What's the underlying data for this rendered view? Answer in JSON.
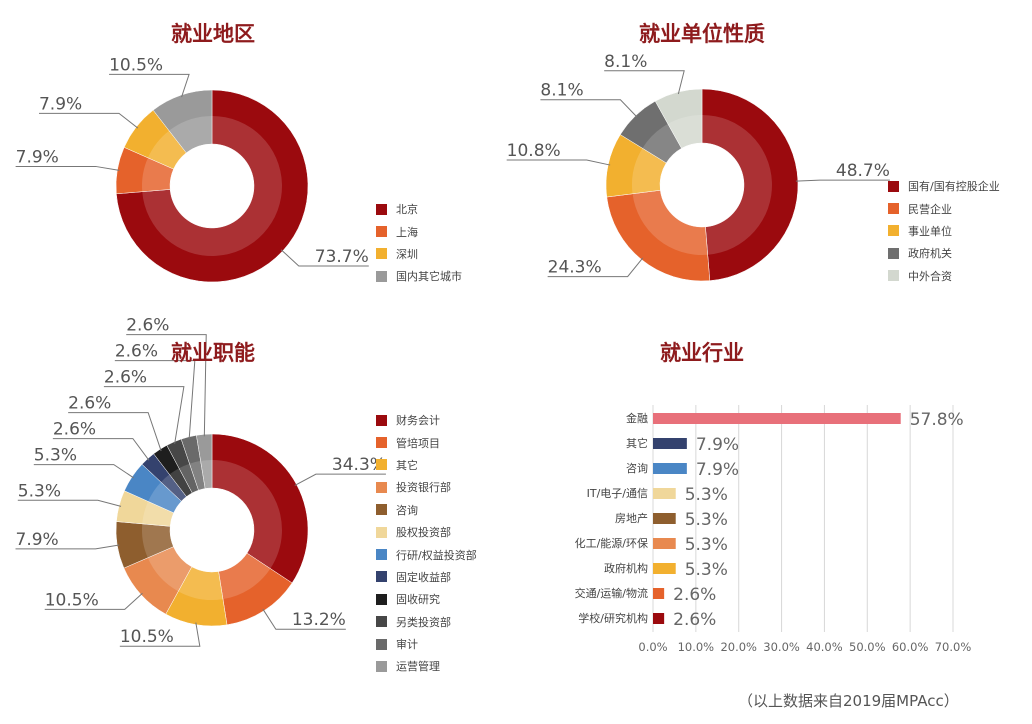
{
  "chart_data": [
    {
      "type": "pie",
      "title": "就业地区",
      "legend_position": "right",
      "categories": [
        "北京",
        "上海",
        "深圳",
        "国内其它城市"
      ],
      "values": [
        73.7,
        7.9,
        7.9,
        10.5
      ],
      "labels": [
        "73.7%",
        "7.9%",
        "7.9%",
        "10.5%"
      ],
      "colors": [
        "#9b0a0e",
        "#e5622b",
        "#f2b02f",
        "#9a9a9a"
      ]
    },
    {
      "type": "pie",
      "title": "就业单位性质",
      "legend_position": "right",
      "categories": [
        "国有/国有控股企业",
        "民营企业",
        "事业单位",
        "政府机关",
        "中外合资"
      ],
      "values": [
        48.7,
        24.3,
        10.8,
        8.1,
        8.1
      ],
      "labels": [
        "48.7%",
        "24.3%",
        "10.8%",
        "8.1%",
        "8.1%"
      ],
      "colors": [
        "#9b0a0e",
        "#e5622b",
        "#f2b02f",
        "#6f6f6f",
        "#d3d8cf"
      ]
    },
    {
      "type": "pie",
      "title": "就业职能",
      "legend_position": "right",
      "categories": [
        "财务会计",
        "管培项目",
        "其它",
        "投资银行部",
        "咨询",
        "股权投资部",
        "行研/权益投资部",
        "固定收益部",
        "固收研究",
        "另类投资部",
        "审计",
        "运营管理"
      ],
      "values": [
        34.3,
        13.2,
        10.5,
        10.5,
        7.9,
        5.3,
        5.3,
        2.6,
        2.6,
        2.6,
        2.6,
        2.6
      ],
      "labels": [
        "34.3%",
        "13.2%",
        "10.5%",
        "10.5%",
        "7.9%",
        "5.3%",
        "5.3%",
        "2.6%",
        "2.6%",
        "2.6%",
        "2.6%",
        "2.6%"
      ],
      "colors": [
        "#9b0a0e",
        "#e5622b",
        "#f2b02f",
        "#e8894f",
        "#8e5e2e",
        "#f0d79a",
        "#4a86c5",
        "#34426e",
        "#1e1e1e",
        "#474747",
        "#6a6a6a",
        "#9a9a9a"
      ]
    },
    {
      "type": "bar",
      "orientation": "horizontal",
      "title": "就业行业",
      "categories": [
        "金融",
        "其它",
        "咨询",
        "IT/电子/通信",
        "房地产",
        "化工/能源/环保",
        "政府机构",
        "交通/运输/物流",
        "学校/研究机构"
      ],
      "values": [
        57.8,
        7.9,
        7.9,
        5.3,
        5.3,
        5.3,
        5.3,
        2.6,
        2.6
      ],
      "labels": [
        "57.8%",
        "7.9%",
        "7.9%",
        "5.3%",
        "5.3%",
        "5.3%",
        "5.3%",
        "2.6%",
        "2.6%"
      ],
      "colors": [
        "#e8707a",
        "#34426e",
        "#4a86c5",
        "#f0d79a",
        "#8e5e2e",
        "#e8894f",
        "#f2b02f",
        "#e5622b",
        "#9b0a0e"
      ],
      "xlim": [
        0,
        70
      ],
      "xticks": [
        "0.0%",
        "10.0%",
        "20.0%",
        "30.0%",
        "40.0%",
        "50.0%",
        "60.0%",
        "70.0%"
      ],
      "grid": "vertical"
    }
  ],
  "footnote": "（以上数据来自2019届MPAcc）"
}
